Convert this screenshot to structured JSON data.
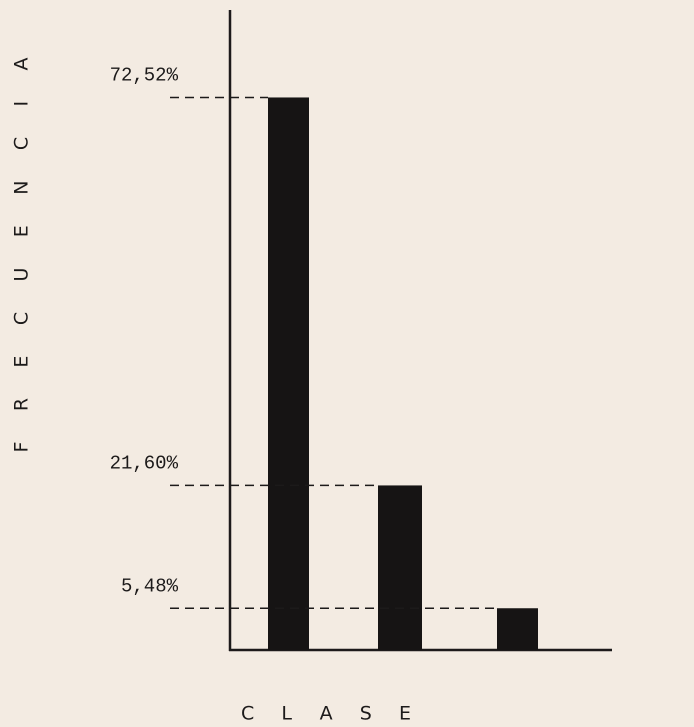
{
  "chart_data": {
    "type": "bar",
    "x_label": "CLASE",
    "y_label": "FRECUENCIA",
    "categories": [
      null,
      null,
      null
    ],
    "values": [
      72.52,
      21.6,
      5.48
    ],
    "value_labels": [
      "72,52%",
      "21,60%",
      "5,48%"
    ],
    "color": "#161414",
    "ylim": [
      0,
      84
    ]
  }
}
